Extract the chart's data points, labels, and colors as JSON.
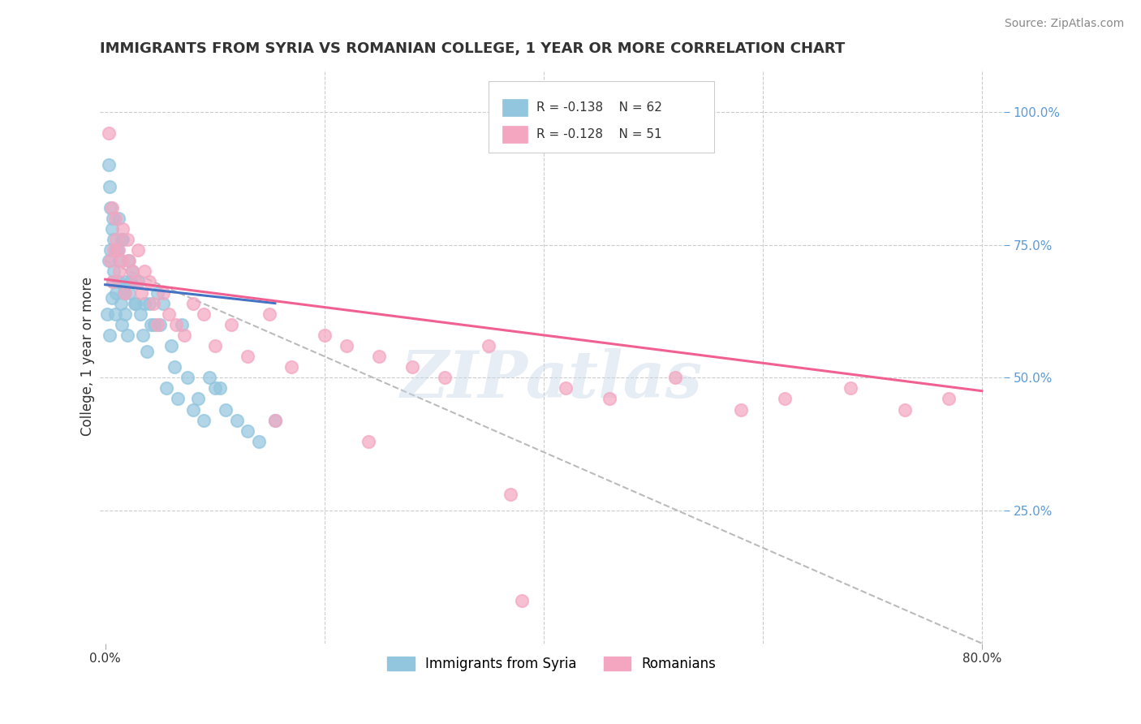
{
  "title": "IMMIGRANTS FROM SYRIA VS ROMANIAN COLLEGE, 1 YEAR OR MORE CORRELATION CHART",
  "source_text": "Source: ZipAtlas.com",
  "ylabel": "College, 1 year or more",
  "xlim": [
    -0.005,
    0.82
  ],
  "ylim": [
    0.0,
    1.08
  ],
  "yticks_right": [
    0.25,
    0.5,
    0.75,
    1.0
  ],
  "yticklabels_right": [
    "25.0%",
    "50.0%",
    "75.0%",
    "100.0%"
  ],
  "grid_color": "#cccccc",
  "watermark": "ZIPatlas",
  "legend_r1": "R = -0.138",
  "legend_n1": "N = 62",
  "legend_r2": "R = -0.128",
  "legend_n2": "N = 51",
  "legend_label1": "Immigrants from Syria",
  "legend_label2": "Romanians",
  "scatter_color1": "#92c5de",
  "scatter_color2": "#f4a6c0",
  "line_color1": "#4472c4",
  "line_color2": "#f06090",
  "line_color_dashed": "#bbbbbb",
  "background_color": "#ffffff",
  "syria_x": [
    0.002,
    0.003,
    0.003,
    0.004,
    0.004,
    0.005,
    0.005,
    0.006,
    0.006,
    0.007,
    0.007,
    0.008,
    0.008,
    0.009,
    0.01,
    0.01,
    0.011,
    0.012,
    0.012,
    0.013,
    0.014,
    0.015,
    0.015,
    0.016,
    0.017,
    0.018,
    0.019,
    0.02,
    0.021,
    0.022,
    0.023,
    0.025,
    0.027,
    0.028,
    0.03,
    0.032,
    0.034,
    0.036,
    0.038,
    0.04,
    0.042,
    0.045,
    0.048,
    0.05,
    0.053,
    0.056,
    0.06,
    0.063,
    0.066,
    0.07,
    0.075,
    0.08,
    0.085,
    0.09,
    0.095,
    0.1,
    0.105,
    0.11,
    0.12,
    0.13,
    0.14,
    0.155
  ],
  "syria_y": [
    0.62,
    0.9,
    0.72,
    0.58,
    0.86,
    0.74,
    0.82,
    0.65,
    0.78,
    0.68,
    0.8,
    0.7,
    0.76,
    0.62,
    0.66,
    0.74,
    0.74,
    0.68,
    0.8,
    0.72,
    0.64,
    0.6,
    0.76,
    0.76,
    0.66,
    0.62,
    0.68,
    0.58,
    0.72,
    0.66,
    0.68,
    0.7,
    0.64,
    0.64,
    0.68,
    0.62,
    0.58,
    0.64,
    0.55,
    0.64,
    0.6,
    0.6,
    0.66,
    0.6,
    0.64,
    0.48,
    0.56,
    0.52,
    0.46,
    0.6,
    0.5,
    0.44,
    0.46,
    0.42,
    0.5,
    0.48,
    0.48,
    0.44,
    0.42,
    0.4,
    0.38,
    0.42
  ],
  "romania_x": [
    0.003,
    0.005,
    0.006,
    0.007,
    0.008,
    0.009,
    0.01,
    0.012,
    0.013,
    0.015,
    0.016,
    0.018,
    0.02,
    0.022,
    0.025,
    0.028,
    0.03,
    0.033,
    0.036,
    0.04,
    0.044,
    0.048,
    0.053,
    0.058,
    0.065,
    0.072,
    0.08,
    0.09,
    0.1,
    0.115,
    0.13,
    0.15,
    0.17,
    0.2,
    0.22,
    0.25,
    0.28,
    0.31,
    0.35,
    0.38,
    0.42,
    0.46,
    0.52,
    0.58,
    0.62,
    0.68,
    0.73,
    0.77,
    0.37,
    0.155,
    0.24
  ],
  "romania_y": [
    0.96,
    0.72,
    0.82,
    0.68,
    0.74,
    0.8,
    0.76,
    0.74,
    0.7,
    0.72,
    0.78,
    0.66,
    0.76,
    0.72,
    0.7,
    0.68,
    0.74,
    0.66,
    0.7,
    0.68,
    0.64,
    0.6,
    0.66,
    0.62,
    0.6,
    0.58,
    0.64,
    0.62,
    0.56,
    0.6,
    0.54,
    0.62,
    0.52,
    0.58,
    0.56,
    0.54,
    0.52,
    0.5,
    0.56,
    0.08,
    0.48,
    0.46,
    0.5,
    0.44,
    0.46,
    0.48,
    0.44,
    0.46,
    0.28,
    0.42,
    0.38
  ],
  "trendline1_x": [
    0.0,
    0.155
  ],
  "trendline1_y": [
    0.675,
    0.64
  ],
  "trendline2_x": [
    0.0,
    0.8
  ],
  "trendline2_y": [
    0.685,
    0.475
  ],
  "dashed_line_x": [
    0.0,
    0.8
  ],
  "dashed_line_y": [
    0.72,
    0.0
  ]
}
